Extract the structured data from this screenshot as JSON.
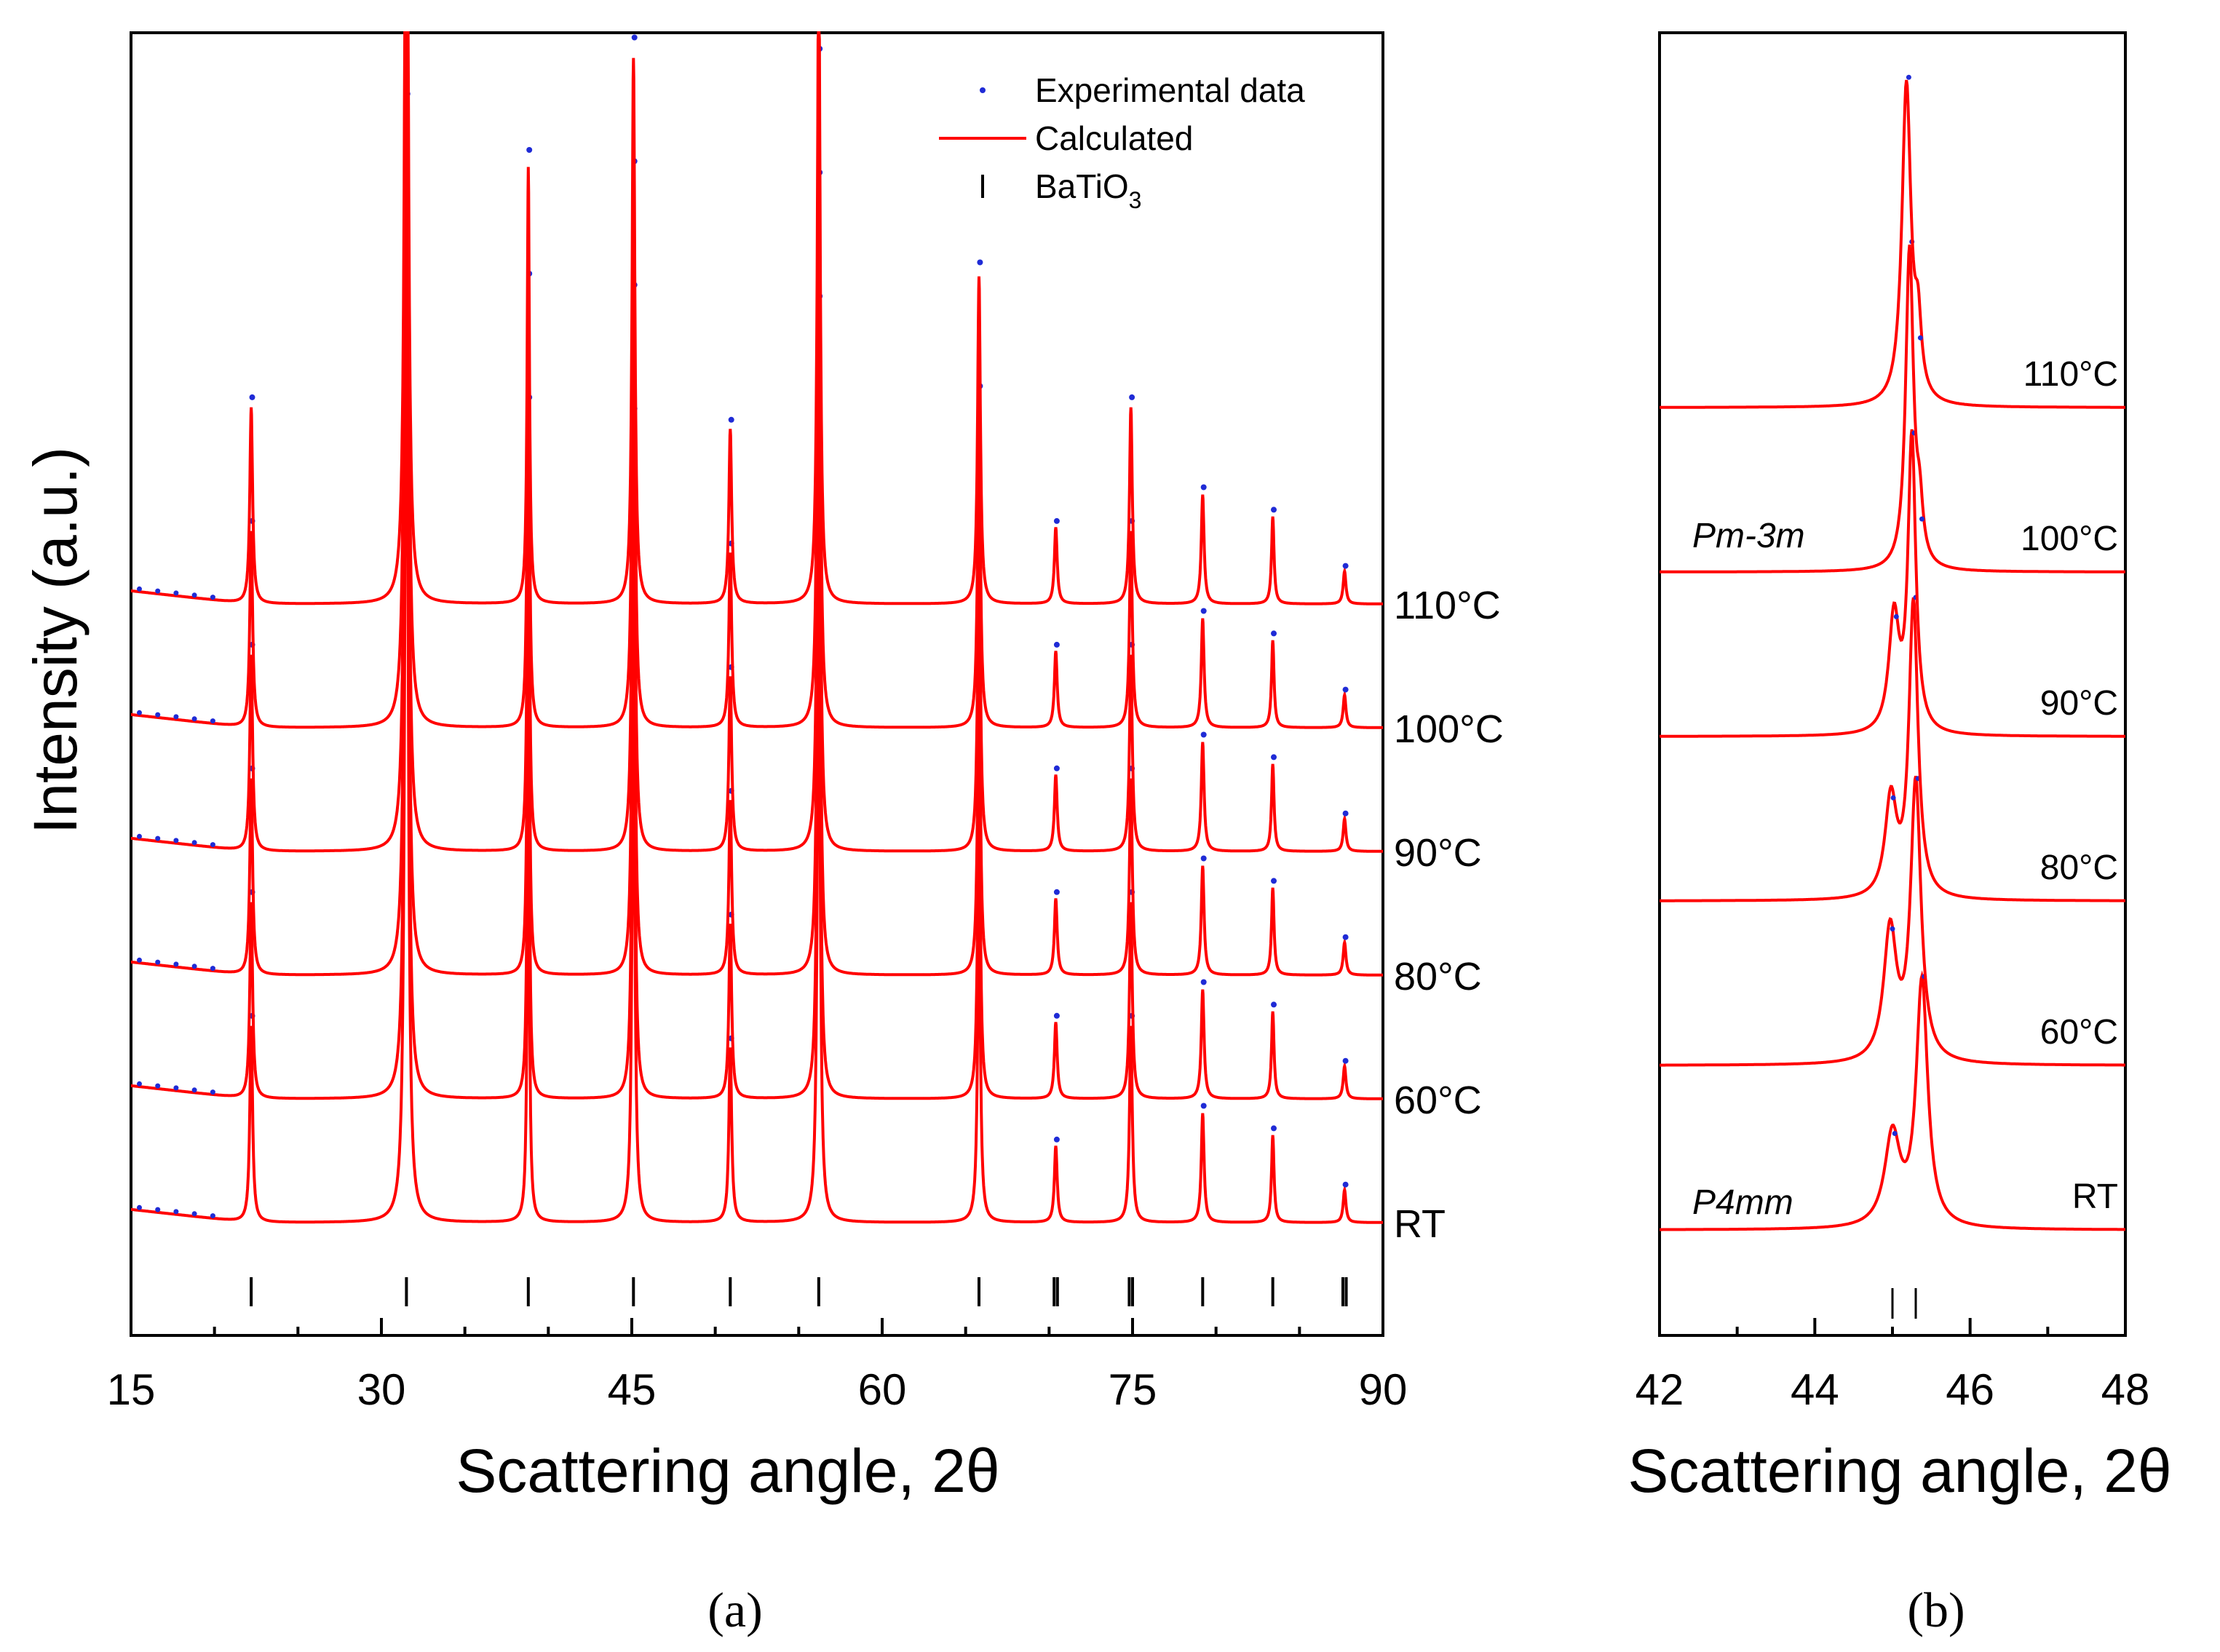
{
  "colors": {
    "calc": "#ff0000",
    "exp": "#1f2bd6",
    "axis": "#000000"
  },
  "panel_labels": {
    "a": "(a)",
    "b": "(b)"
  },
  "chart_data": [
    {
      "id": "a",
      "type": "line",
      "xlabel": "Scattering angle, 2θ",
      "ylabel": "Intensity (a.u.)",
      "xlim": [
        15,
        90
      ],
      "xticks": [
        15,
        30,
        45,
        60,
        75,
        90
      ],
      "xtick_labels": [
        "15",
        "30",
        "45",
        "60",
        "75",
        "90"
      ],
      "legend": {
        "position": "top-right",
        "items": [
          {
            "marker": "dot",
            "label": "Experimental data"
          },
          {
            "marker": "line",
            "label": "Calculated"
          },
          {
            "marker": "tick",
            "label": "BaTiO",
            "sub": "3"
          }
        ]
      },
      "series": [
        {
          "name": "RT",
          "offset": 0
        },
        {
          "name": "60°C",
          "offset": 1
        },
        {
          "name": "80°C",
          "offset": 2
        },
        {
          "name": "90°C",
          "offset": 3
        },
        {
          "name": "100°C",
          "offset": 4
        },
        {
          "name": "110°C",
          "offset": 5
        }
      ],
      "bragg_positions": [
        22.2,
        31.5,
        38.8,
        45.1,
        50.9,
        56.2,
        65.8,
        70.3,
        70.5,
        74.8,
        75.0,
        79.2,
        83.4,
        87.6,
        87.8
      ]
    },
    {
      "id": "b",
      "type": "line",
      "xlabel": "Scattering angle, 2θ",
      "xlim": [
        42,
        48
      ],
      "xticks": [
        42,
        44,
        46,
        48
      ],
      "xtick_labels": [
        "42",
        "44",
        "46",
        "48"
      ],
      "series": [
        {
          "name": "RT",
          "offset": 0
        },
        {
          "name": "60°C",
          "offset": 1
        },
        {
          "name": "80°C",
          "offset": 2
        },
        {
          "name": "90°C",
          "offset": 3
        },
        {
          "name": "100°C",
          "offset": 4
        },
        {
          "name": "110°C",
          "offset": 5
        }
      ],
      "phase_labels": [
        {
          "text": "Pm-3m",
          "near": "100°C"
        },
        {
          "text": "P4mm",
          "near": "RT"
        }
      ],
      "bragg_positions": [
        45.0,
        45.3
      ]
    }
  ]
}
